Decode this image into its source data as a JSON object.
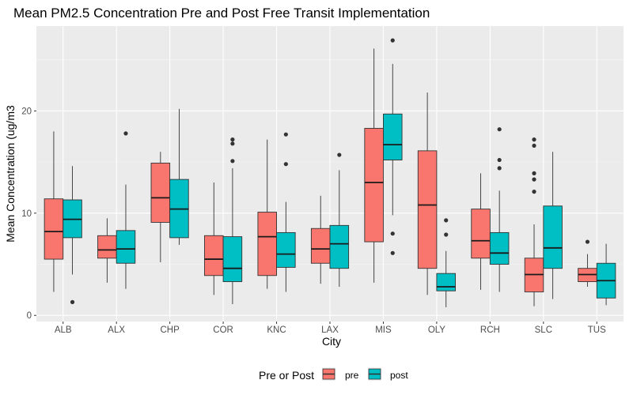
{
  "chart_data": {
    "type": "boxplot",
    "title": "Mean PM2.5 Concentration Pre and Post Free Transit Implementation",
    "xlabel": "City",
    "ylabel": "Mean Concentration (ug/m3",
    "ylim": [
      -0.6,
      28.3
    ],
    "yticks": [
      0,
      10,
      20
    ],
    "grid": true,
    "legend": {
      "title": "Pre or Post",
      "position": "bottom",
      "entries": [
        {
          "label": "pre",
          "color": "#F8766D"
        },
        {
          "label": "post",
          "color": "#00BFC4"
        }
      ]
    },
    "categories": [
      "ALB",
      "ALX",
      "CHP",
      "COR",
      "KNC",
      "LAX",
      "MIS",
      "OLY",
      "RCH",
      "SLC",
      "TUS"
    ],
    "series": [
      {
        "name": "pre",
        "color": "#F8766D",
        "boxes": [
          {
            "whislo": 2.3,
            "q1": 5.5,
            "med": 8.2,
            "q3": 11.4,
            "whishi": 18.0,
            "outliers": []
          },
          {
            "whislo": 3.2,
            "q1": 5.6,
            "med": 6.4,
            "q3": 7.8,
            "whishi": 9.5,
            "outliers": []
          },
          {
            "whislo": 5.2,
            "q1": 9.1,
            "med": 11.5,
            "q3": 14.9,
            "whishi": 16.0,
            "outliers": []
          },
          {
            "whislo": 2.0,
            "q1": 3.9,
            "med": 5.5,
            "q3": 7.8,
            "whishi": 13.0,
            "outliers": []
          },
          {
            "whislo": 2.6,
            "q1": 3.9,
            "med": 7.7,
            "q3": 10.1,
            "whishi": 17.2,
            "outliers": []
          },
          {
            "whislo": 3.1,
            "q1": 5.1,
            "med": 6.5,
            "q3": 8.5,
            "whishi": 11.7,
            "outliers": []
          },
          {
            "whislo": 3.2,
            "q1": 7.2,
            "med": 13.0,
            "q3": 18.3,
            "whishi": 26.1,
            "outliers": []
          },
          {
            "whislo": 2.0,
            "q1": 4.6,
            "med": 10.8,
            "q3": 16.1,
            "whishi": 21.8,
            "outliers": []
          },
          {
            "whislo": 2.5,
            "q1": 5.6,
            "med": 7.3,
            "q3": 10.4,
            "whishi": 13.9,
            "outliers": []
          },
          {
            "whislo": 0.9,
            "q1": 2.3,
            "med": 4.0,
            "q3": 5.6,
            "whishi": 8.9,
            "outliers": [
              12.1,
              13.3,
              13.9,
              16.6,
              17.2
            ]
          },
          {
            "whislo": 2.8,
            "q1": 3.3,
            "med": 4.0,
            "q3": 4.6,
            "whishi": 6.0,
            "outliers": [
              7.2
            ]
          }
        ]
      },
      {
        "name": "post",
        "color": "#00BFC4",
        "boxes": [
          {
            "whislo": 4.0,
            "q1": 7.6,
            "med": 9.4,
            "q3": 11.3,
            "whishi": 14.6,
            "outliers": [
              1.3
            ]
          },
          {
            "whislo": 2.6,
            "q1": 5.1,
            "med": 6.5,
            "q3": 8.3,
            "whishi": 12.8,
            "outliers": [
              17.8
            ]
          },
          {
            "whislo": 6.9,
            "q1": 7.6,
            "med": 10.4,
            "q3": 13.3,
            "whishi": 20.2,
            "outliers": []
          },
          {
            "whislo": 1.1,
            "q1": 3.3,
            "med": 4.6,
            "q3": 7.7,
            "whishi": 14.4,
            "outliers": [
              15.1,
              16.8,
              17.2
            ]
          },
          {
            "whislo": 2.3,
            "q1": 4.7,
            "med": 6.0,
            "q3": 8.1,
            "whishi": 11.1,
            "outliers": [
              14.8,
              17.7
            ]
          },
          {
            "whislo": 2.8,
            "q1": 4.6,
            "med": 7.0,
            "q3": 8.8,
            "whishi": 14.2,
            "outliers": [
              15.7
            ]
          },
          {
            "whislo": 9.8,
            "q1": 15.2,
            "med": 16.7,
            "q3": 19.7,
            "whishi": 24.6,
            "outliers": [
              6.1,
              8.0,
              26.9
            ]
          },
          {
            "whislo": 0.8,
            "q1": 2.4,
            "med": 2.8,
            "q3": 4.1,
            "whishi": 6.3,
            "outliers": [
              7.9,
              9.3
            ]
          },
          {
            "whislo": 2.3,
            "q1": 5.0,
            "med": 6.1,
            "q3": 8.1,
            "whishi": 12.2,
            "outliers": [
              14.4,
              15.2,
              18.2
            ]
          },
          {
            "whislo": 1.6,
            "q1": 4.6,
            "med": 6.6,
            "q3": 10.7,
            "whishi": 16.0,
            "outliers": []
          },
          {
            "whislo": 1.0,
            "q1": 1.7,
            "med": 3.4,
            "q3": 5.1,
            "whishi": 7.0,
            "outliers": []
          }
        ]
      }
    ]
  }
}
